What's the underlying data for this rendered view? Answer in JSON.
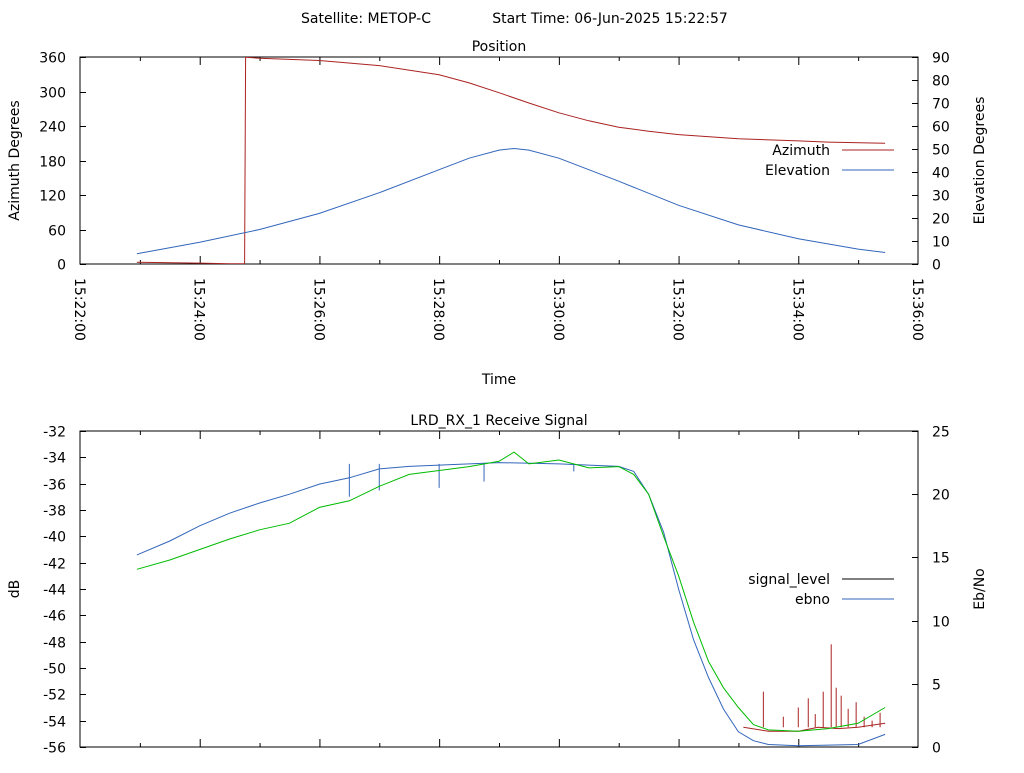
{
  "header": {
    "satellite_label": "Satellite: METOP-C",
    "start_time_label": "Start Time: 06-Jun-2025 15:22:57"
  },
  "colors": {
    "azimuth": "#aa2222",
    "elevation": "#3366bb",
    "signal_level": "#aa2222",
    "ebno": "#3366bb",
    "green_trace": "#00bb00",
    "signal_level_key": "#000000",
    "axis": "#000000",
    "background": "#ffffff"
  },
  "chart_data": [
    {
      "type": "line",
      "title": "Position",
      "xlabel": "Time",
      "ylabel": "Azimuth Degrees",
      "y2label": "Elevation Degrees",
      "xlim": [
        "15:22:00",
        "15:36:00"
      ],
      "ylim": [
        0,
        360
      ],
      "y2lim": [
        0,
        90
      ],
      "x_ticks": [
        "15:22:00",
        "15:24:00",
        "15:26:00",
        "15:28:00",
        "15:30:00",
        "15:32:00",
        "15:34:00",
        "15:36:00"
      ],
      "y_ticks": [
        0,
        60,
        120,
        180,
        240,
        300,
        360
      ],
      "y2_ticks": [
        0,
        10,
        20,
        30,
        40,
        50,
        60,
        70,
        80,
        90
      ],
      "legend_position": "right",
      "series": [
        {
          "name": "Azimuth",
          "axis": "y",
          "points": [
            [
              "15:22:57",
              3
            ],
            [
              "15:24:00",
              1.5
            ],
            [
              "15:24:30",
              0.5
            ],
            [
              "15:24:45",
              0.3
            ],
            [
              "15:24:46",
              359.5
            ],
            [
              "15:25:00",
              358
            ],
            [
              "15:26:00",
              354
            ],
            [
              "15:27:00",
              345
            ],
            [
              "15:28:00",
              329
            ],
            [
              "15:28:30",
              315
            ],
            [
              "15:29:00",
              298
            ],
            [
              "15:29:30",
              280
            ],
            [
              "15:30:00",
              263
            ],
            [
              "15:30:30",
              249
            ],
            [
              "15:31:00",
              238
            ],
            [
              "15:31:30",
              231
            ],
            [
              "15:32:00",
              225
            ],
            [
              "15:33:00",
              218
            ],
            [
              "15:34:00",
              214
            ],
            [
              "15:34:30",
              212
            ],
            [
              "15:35:27",
              210
            ]
          ]
        },
        {
          "name": "Elevation",
          "axis": "y2",
          "points": [
            [
              "15:22:57",
              4.5
            ],
            [
              "15:24:00",
              9.5
            ],
            [
              "15:25:00",
              15
            ],
            [
              "15:26:00",
              22
            ],
            [
              "15:27:00",
              31
            ],
            [
              "15:28:00",
              41
            ],
            [
              "15:28:30",
              46
            ],
            [
              "15:29:00",
              49.5
            ],
            [
              "15:29:15",
              50.2
            ],
            [
              "15:29:30",
              49.5
            ],
            [
              "15:30:00",
              46
            ],
            [
              "15:31:00",
              36
            ],
            [
              "15:32:00",
              25.5
            ],
            [
              "15:33:00",
              17
            ],
            [
              "15:34:00",
              11
            ],
            [
              "15:35:00",
              6.5
            ],
            [
              "15:35:27",
              5
            ]
          ]
        }
      ]
    },
    {
      "type": "line",
      "title": "LRD_RX_1 Receive Signal",
      "ylabel": "dB",
      "y2label": "Eb/No",
      "xlim": [
        "15:22:00",
        "15:36:00"
      ],
      "ylim": [
        -56,
        -32
      ],
      "y2lim": [
        0,
        25
      ],
      "y_ticks": [
        -32,
        -34,
        -36,
        -38,
        -40,
        -42,
        -44,
        -46,
        -48,
        -50,
        -52,
        -54,
        -56
      ],
      "y2_ticks": [
        0,
        5,
        10,
        15,
        20,
        25
      ],
      "legend_position": "right",
      "series": [
        {
          "name": "signal_level",
          "color_key": "signal_level_key",
          "axis": "y",
          "points": [
            [
              "15:33:05",
              -54.5
            ],
            [
              "15:33:30",
              -54.8
            ],
            [
              "15:34:00",
              -54.8
            ],
            [
              "15:34:20",
              -54.5
            ],
            [
              "15:34:40",
              -54.6
            ],
            [
              "15:35:00",
              -54.5
            ],
            [
              "15:35:27",
              -54.2
            ]
          ],
          "spikes": [
            [
              "15:33:25",
              -51.8
            ],
            [
              "15:33:45",
              -53.7
            ],
            [
              "15:34:00",
              -53.0
            ],
            [
              "15:34:10",
              -52.3
            ],
            [
              "15:34:17",
              -53.5
            ],
            [
              "15:34:25",
              -51.8
            ],
            [
              "15:34:33",
              -48.2
            ],
            [
              "15:34:38",
              -51.5
            ],
            [
              "15:34:43",
              -52.1
            ],
            [
              "15:34:50",
              -53.1
            ],
            [
              "15:34:58",
              -52.6
            ],
            [
              "15:35:06",
              -53.7
            ],
            [
              "15:35:14",
              -54.0
            ],
            [
              "15:35:22",
              -53.4
            ]
          ]
        },
        {
          "name": "ebno",
          "axis": "y2",
          "points": [
            [
              "15:22:57",
              15.2
            ],
            [
              "15:23:30",
              16.3
            ],
            [
              "15:24:00",
              17.5
            ],
            [
              "15:24:30",
              18.5
            ],
            [
              "15:25:00",
              19.3
            ],
            [
              "15:25:30",
              20.0
            ],
            [
              "15:26:00",
              20.8
            ],
            [
              "15:26:30",
              21.3
            ],
            [
              "15:27:00",
              22.0
            ],
            [
              "15:27:30",
              22.2
            ],
            [
              "15:28:00",
              22.3
            ],
            [
              "15:29:00",
              22.5
            ],
            [
              "15:30:00",
              22.4
            ],
            [
              "15:31:00",
              22.2
            ],
            [
              "15:31:15",
              21.8
            ],
            [
              "15:31:30",
              20.0
            ],
            [
              "15:31:45",
              17.0
            ],
            [
              "15:32:00",
              12.5
            ],
            [
              "15:32:15",
              8.5
            ],
            [
              "15:32:30",
              5.5
            ],
            [
              "15:32:45",
              3.0
            ],
            [
              "15:33:00",
              1.2
            ],
            [
              "15:33:15",
              0.5
            ],
            [
              "15:33:30",
              0.2
            ],
            [
              "15:34:00",
              0.1
            ],
            [
              "15:35:00",
              0.2
            ],
            [
              "15:35:27",
              1.0
            ]
          ],
          "dips": [
            [
              "15:26:30",
              19.8
            ],
            [
              "15:27:00",
              20.3
            ],
            [
              "15:28:00",
              20.5
            ],
            [
              "15:28:45",
              21.0
            ],
            [
              "15:30:15",
              21.8
            ]
          ]
        },
        {
          "axis": "y",
          "color_key": "green_trace",
          "points": [
            [
              "15:22:57",
              -42.5
            ],
            [
              "15:23:30",
              -41.8
            ],
            [
              "15:24:00",
              -41.0
            ],
            [
              "15:24:30",
              -40.2
            ],
            [
              "15:25:00",
              -39.5
            ],
            [
              "15:25:30",
              -39.0
            ],
            [
              "15:26:00",
              -37.8
            ],
            [
              "15:26:30",
              -37.3
            ],
            [
              "15:27:00",
              -36.2
            ],
            [
              "15:27:30",
              -35.3
            ],
            [
              "15:28:00",
              -35.0
            ],
            [
              "15:28:30",
              -34.7
            ],
            [
              "15:29:00",
              -34.3
            ],
            [
              "15:29:15",
              -33.6
            ],
            [
              "15:29:30",
              -34.5
            ],
            [
              "15:30:00",
              -34.2
            ],
            [
              "15:30:30",
              -34.8
            ],
            [
              "15:31:00",
              -34.7
            ],
            [
              "15:31:15",
              -35.3
            ],
            [
              "15:31:30",
              -36.8
            ],
            [
              "15:31:45",
              -40.0
            ],
            [
              "15:32:00",
              -43.0
            ],
            [
              "15:32:15",
              -46.5
            ],
            [
              "15:32:30",
              -49.5
            ],
            [
              "15:32:45",
              -51.5
            ],
            [
              "15:33:00",
              -53.0
            ],
            [
              "15:33:15",
              -54.3
            ],
            [
              "15:33:30",
              -54.7
            ],
            [
              "15:34:00",
              -54.8
            ],
            [
              "15:34:30",
              -54.6
            ],
            [
              "15:35:00",
              -54.2
            ],
            [
              "15:35:27",
              -53.0
            ]
          ]
        }
      ]
    }
  ]
}
